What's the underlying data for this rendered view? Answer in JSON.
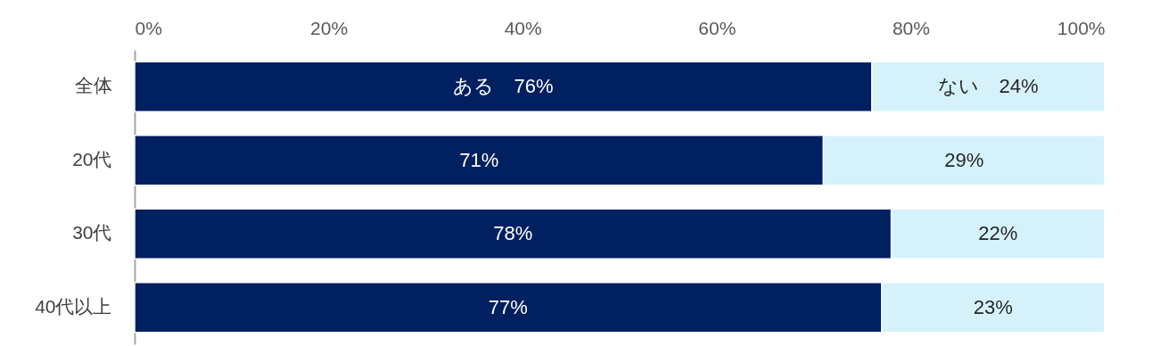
{
  "chart_data": {
    "type": "bar",
    "orientation": "horizontal",
    "stacked": true,
    "categories": [
      "全体",
      "20代",
      "30代",
      "40代以上"
    ],
    "series": [
      {
        "color": "#002060",
        "values": [
          76,
          71,
          78,
          77
        ],
        "value_labels": [
          "ある　76%",
          "71%",
          "78%",
          "77%"
        ]
      },
      {
        "color": "#d5f2fb",
        "values": [
          24,
          29,
          22,
          23
        ],
        "value_labels": [
          "ない　24%",
          "29%",
          "22%",
          "23%"
        ]
      }
    ],
    "xlim": [
      0,
      100
    ],
    "xticks": [
      {
        "value": 0,
        "label": "0%"
      },
      {
        "value": 20,
        "label": "20%"
      },
      {
        "value": 40,
        "label": "40%"
      },
      {
        "value": 60,
        "label": "60%"
      },
      {
        "value": 80,
        "label": "80%"
      },
      {
        "value": 100,
        "label": "100%"
      }
    ],
    "grid": false
  }
}
